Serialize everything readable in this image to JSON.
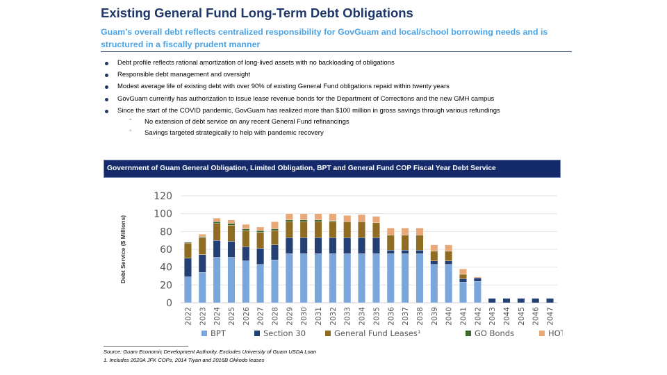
{
  "header": {
    "title": "Existing General Fund Long-Term Debt Obligations",
    "subtitle": "Guam’s overall debt reflects centralized responsibility for GovGuam and local/school borrowing needs and is structured in a fiscally prudent manner"
  },
  "bullets": [
    "Debt profile reflects rational amortization of long-lived assets with no backloading of obligations",
    "Responsible debt management and oversight",
    "Modest average life of existing debt with over 90% of existing General Fund obligations repaid within twenty years",
    "GovGuam currently has authorization to issue lease revenue bonds for the Department of Corrections and the new GMH campus",
    "Since the start of the COVID pandemic, GovGuam has realized more than $100 million in gross savings through various refundings"
  ],
  "sub_bullets": [
    "No extension of debt service on any recent General Fund refinancings",
    "Savings targeted strategically to help with pandemic recovery"
  ],
  "chart_header": "Government of Guam General Obligation, Limited Obligation, BPT and General Fund COP Fiscal Year Debt Service",
  "footnotes": {
    "source": "Source: Guam Economic Development Authority. Excludes University of Guam USDA Loan",
    "note1": "1. Includes 2020A JFK COPs, 2014 Tiyan and 2016B Okkodo leases"
  },
  "colors": {
    "BPT": "#7aa6dc",
    "Section 30": "#243f74",
    "General Fund Leases": "#8f6c22",
    "GO Bonds": "#3c6630",
    "HOT": "#e8a878"
  },
  "chart_data": {
    "type": "bar",
    "stacked": true,
    "title": "Government of Guam General Obligation, Limited Obligation, BPT and General Fund COP Fiscal Year Debt Service",
    "ylabel": "Debt Service ($ Millions)",
    "xlabel": "",
    "ylim": [
      0,
      120
    ],
    "yticks": [
      0,
      20,
      40,
      60,
      80,
      100,
      120
    ],
    "grid": true,
    "legend_position": "bottom",
    "categories": [
      "2022",
      "2023",
      "2024",
      "2025",
      "2026",
      "2027",
      "2028",
      "2029",
      "2030",
      "2031",
      "2032",
      "2033",
      "2034",
      "2035",
      "2036",
      "2037",
      "2038",
      "2039",
      "2040",
      "2041",
      "2042",
      "2043",
      "2044",
      "2045",
      "2046",
      "2047"
    ],
    "series": [
      {
        "name": "BPT",
        "legend": "BPT",
        "values": [
          29,
          34,
          51,
          51,
          47,
          43,
          48,
          55,
          55,
          55,
          55,
          55,
          55,
          55,
          55,
          55,
          55,
          43,
          43,
          23,
          24,
          0,
          0,
          0,
          0,
          0
        ]
      },
      {
        "name": "Section 30",
        "legend": "Section 30",
        "values": [
          21,
          20,
          19,
          18,
          16,
          18,
          17,
          18,
          18,
          18,
          18,
          18,
          18,
          18,
          4,
          4,
          4,
          4,
          4,
          4,
          4,
          5,
          5,
          5,
          5,
          5
        ]
      },
      {
        "name": "General Fund Leases",
        "legend": "General Fund Leases¹",
        "values": [
          17,
          19,
          19,
          18,
          18,
          18,
          16,
          18,
          18,
          18,
          18,
          18,
          18,
          17,
          17,
          17,
          17,
          11,
          11,
          5,
          0,
          0,
          0,
          0,
          0,
          0
        ]
      },
      {
        "name": "GO Bonds",
        "legend": "GO Bonds",
        "values": [
          1,
          1,
          2,
          2,
          2,
          2,
          2,
          2,
          2,
          2,
          1,
          0,
          0,
          0,
          0,
          0,
          0,
          0,
          0,
          0,
          0,
          0,
          0,
          0,
          0,
          0
        ]
      },
      {
        "name": "HOT",
        "legend": "HOT",
        "values": [
          0,
          3,
          4,
          4,
          5,
          4,
          8,
          7,
          7,
          7,
          8,
          7,
          8,
          7,
          8,
          8,
          8,
          7,
          7,
          6,
          1,
          0,
          0,
          0,
          0,
          0
        ]
      }
    ]
  }
}
